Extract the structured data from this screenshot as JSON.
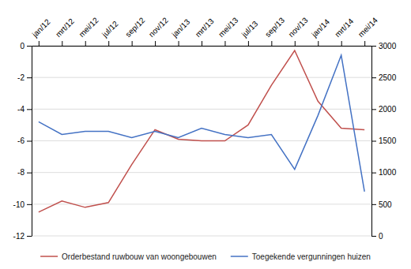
{
  "chart_data": {
    "type": "line",
    "categories": [
      "jan/12",
      "mrt/12",
      "mei/12",
      "jul/12",
      "sep/12",
      "nov/12",
      "jan/13",
      "mrt/13",
      "mei/13",
      "jul/13",
      "sep/13",
      "nov/13",
      "jan/14",
      "mrt/14",
      "mei/14"
    ],
    "series": [
      {
        "name": "Orderbestand ruwbouw van woongebouwen",
        "color": "#C0504D",
        "values": [
          -10.5,
          -9.8,
          -10.2,
          -9.9,
          -7.5,
          -5.3,
          -5.9,
          -6.0,
          -6.0,
          -5.0,
          -2.5,
          -0.3,
          -3.5,
          -5.2,
          -5.3
        ]
      },
      {
        "name": "Toegekende vergunningen huizen",
        "color": "#4472C4",
        "axis": "y2",
        "values": [
          1800,
          1600,
          1650,
          1650,
          1550,
          1650,
          1550,
          1700,
          1600,
          1550,
          1600,
          1050,
          1900,
          2850,
          700
        ]
      }
    ],
    "ylim": [
      -12,
      0
    ],
    "yticks": [
      0,
      -2,
      -4,
      -6,
      -8,
      -10,
      -12
    ],
    "y2lim": [
      0,
      3000
    ],
    "y2ticks": [
      0,
      500,
      1000,
      1500,
      2000,
      2500,
      3000
    ],
    "grid": true,
    "legend": "bottom"
  }
}
